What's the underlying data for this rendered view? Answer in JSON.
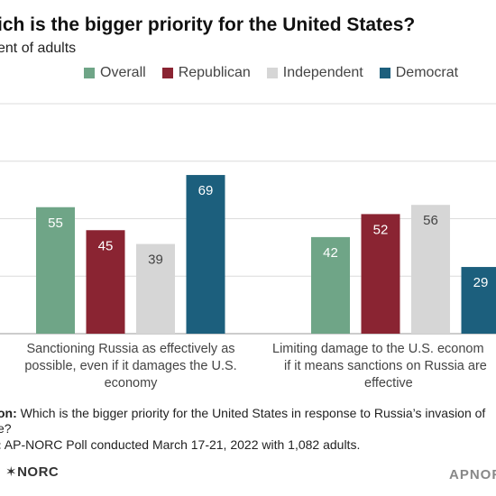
{
  "header": {
    "title": "ich is the bigger priority for the United States?",
    "subtitle": "ent of adults"
  },
  "chart_data": {
    "type": "bar",
    "categories": [
      [
        "Sanctioning Russia as effectively as",
        "possible, even if it damages the U.S.",
        "economy"
      ],
      [
        "Limiting damage to the U.S. econom",
        "if it means sanctions on Russia are",
        "effective"
      ]
    ],
    "series": [
      {
        "name": "Overall",
        "color": "#6fa587",
        "values": [
          55,
          42
        ]
      },
      {
        "name": "Republican",
        "color": "#8a2432",
        "values": [
          45,
          52
        ]
      },
      {
        "name": "Independent",
        "color": "#d6d6d6",
        "values": [
          39,
          56
        ]
      },
      {
        "name": "Democrat",
        "color": "#1c5f7d",
        "values": [
          69,
          29
        ]
      }
    ],
    "ylim": [
      0,
      100
    ],
    "grid": true,
    "legend": "top"
  },
  "footer": {
    "question_label": "on:",
    "question_line1": " Which is the bigger priority for the United States in response to Russia’s invasion of",
    "question_line2": "e?",
    "source_label": ":",
    "source_text": " AP-NORC Poll conducted March 17-21, 2022 with 1,082 adults.",
    "logo_left": "✶NORC",
    "logo_right": "APNOR"
  }
}
